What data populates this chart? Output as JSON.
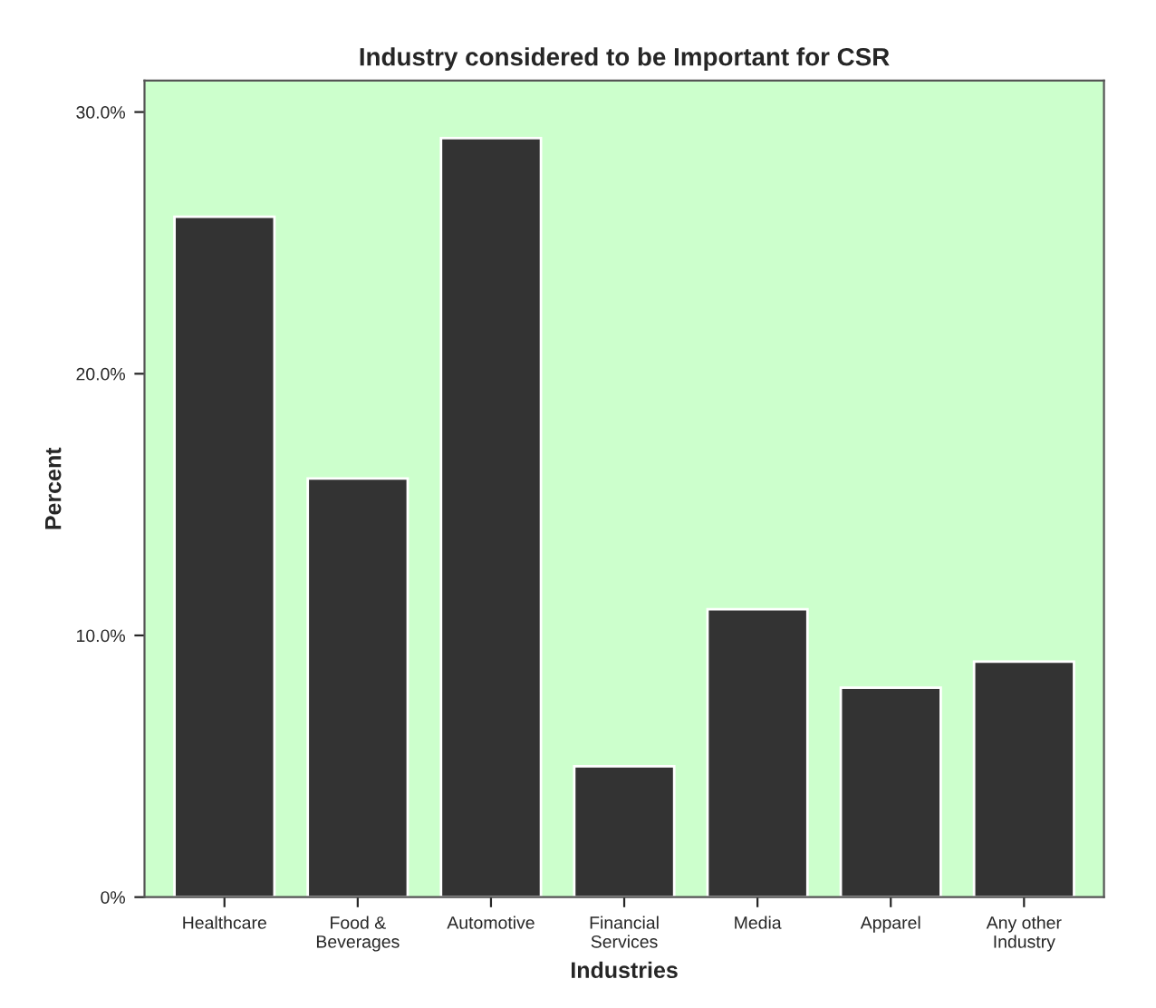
{
  "chart_data": {
    "type": "bar",
    "title": "Industry considered to be Important for CSR",
    "xlabel": "Industries",
    "ylabel": "Percent",
    "categories": [
      "Healthcare",
      "Food &\nBeverages",
      "Automotive",
      "Financial\nServices",
      "Media",
      "Apparel",
      "Any other\nIndustry"
    ],
    "values": [
      26,
      16,
      29,
      5,
      11,
      8,
      9
    ],
    "color": "#333333",
    "ylim": [
      0,
      31.2
    ],
    "yticks": [
      {
        "value": 0,
        "label": "0%"
      },
      {
        "value": 10,
        "label": "10.0%"
      },
      {
        "value": 20,
        "label": "20.0%"
      },
      {
        "value": 30,
        "label": "30.0%"
      }
    ],
    "grid": false
  }
}
